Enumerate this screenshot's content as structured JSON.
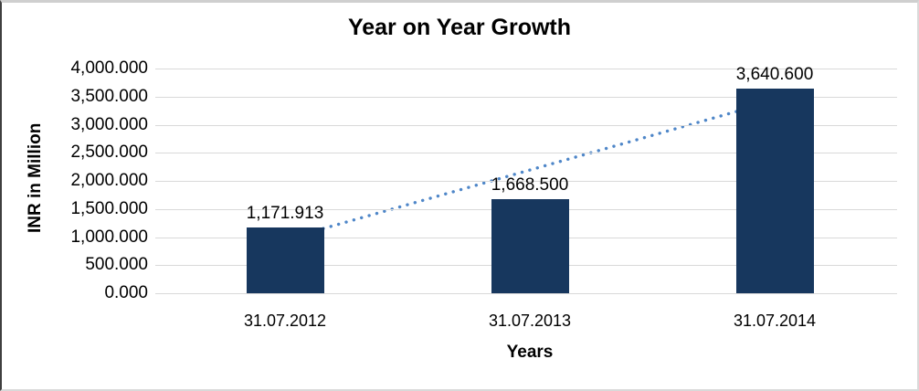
{
  "frame": {
    "background": "#FFFFFF",
    "border_dark": "#3F3F3F",
    "border_light": "#D9D9D9"
  },
  "chart_data": {
    "type": "bar",
    "title": "Year on Year Growth",
    "xlabel": "Years",
    "ylabel": "INR in Million",
    "categories": [
      "31.07.2012",
      "31.07.2013",
      "31.07.2014"
    ],
    "values": [
      1171.913,
      1668.5,
      3640.6
    ],
    "data_labels": [
      "1,171.913",
      "1,668.500",
      "3,640.600"
    ],
    "y_ticks": [
      0,
      500,
      1000,
      1500,
      2000,
      2500,
      3000,
      3500,
      4000
    ],
    "y_tick_labels": [
      "0.000",
      "500.000",
      "1,000.000",
      "1,500.000",
      "2,000.000",
      "2,500.000",
      "3,000.000",
      "3,500.000",
      "4,000.000"
    ],
    "ylim": [
      0,
      4000
    ],
    "grid": true,
    "legend": "none",
    "bar_color": "#17375E",
    "gridline_color": "#D9D9D9",
    "text_color": "#000000",
    "trendline": {
      "type": "linear",
      "style": "dotted",
      "color": "#4E86C8"
    }
  }
}
